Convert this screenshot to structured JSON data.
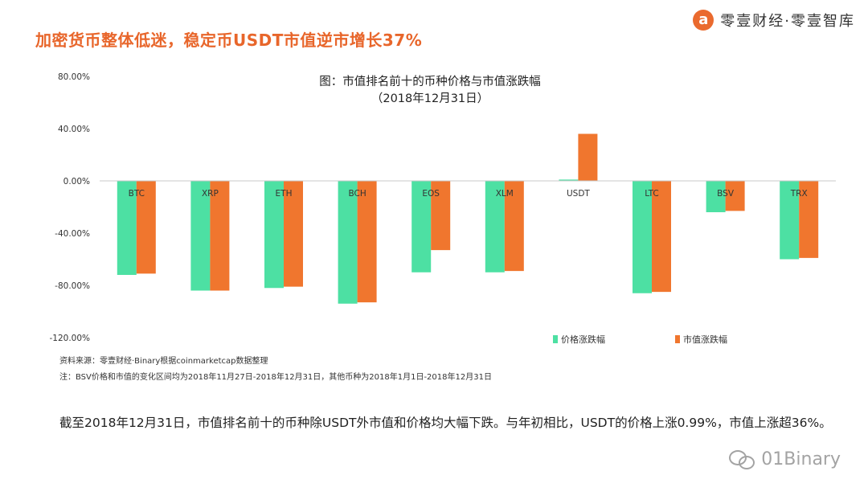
{
  "headline": "加密货币整体低迷，稳定币USDT市值逆市增长37%",
  "brand": {
    "logo_glyph": "a",
    "text": "零壹财经·零壹智库",
    "logo_color": "#ea6a2e"
  },
  "chart_data": {
    "type": "bar",
    "title": "图：市值排名前十的币种价格与市值涨跌幅",
    "subtitle": "（2018年12月31日）",
    "categories": [
      "BTC",
      "XRP",
      "ETH",
      "BCH",
      "EOS",
      "XLM",
      "USDT",
      "LTC",
      "BSV",
      "TRX"
    ],
    "series": [
      {
        "name": "价格涨跌幅",
        "color": "#4de0a3",
        "values": [
          -72,
          -84,
          -82,
          -94,
          -70,
          -70,
          0.99,
          -86,
          -24,
          -60
        ]
      },
      {
        "name": "市值涨跌幅",
        "color": "#f0762e",
        "values": [
          -71,
          -84,
          -81,
          -93,
          -53,
          -69,
          36,
          -85,
          -23,
          -59
        ]
      }
    ],
    "ylim": [
      -120,
      80
    ],
    "yticks": [
      80,
      40,
      0,
      -40,
      -80,
      -120
    ],
    "ytick_labels": [
      "80.00%",
      "40.00%",
      "0.00%",
      "-40.00%",
      "-80.00%",
      "-120.00%"
    ],
    "legend_position": "bottom-right"
  },
  "notes": {
    "source": "资料来源：零壹财经·Binary根据coinmarketcap数据整理",
    "note": "注：BSV价格和市值的变化区间均为2018年11月27日-2018年12月31日，其他币种为2018年1月1日-2018年12月31日"
  },
  "body_text": "截至2018年12月31日，市值排名前十的币种除USDT外市值和价格均大幅下跌。与年初相比，USDT的价格上涨0.99%，市值上涨超36%。",
  "watermark": {
    "text": "01Binary",
    "icon": "wechat-icon"
  }
}
